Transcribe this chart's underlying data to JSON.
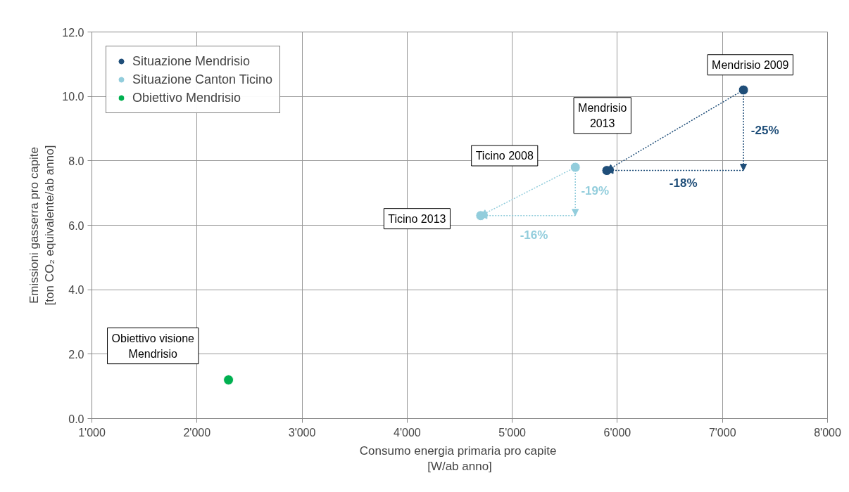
{
  "chart_data": {
    "type": "scatter",
    "xlabel": "Consumo  energia primaria pro capite\n[W/ab anno]",
    "ylabel": "Emissioni gasserra pro capite\n[ton CO₂ equivalente/ab anno]",
    "series": [
      {
        "name": "Situazione Mendrisio",
        "color": "#1f4e79",
        "x": [
          7200,
          5900
        ],
        "values": [
          10.2,
          7.7
        ]
      },
      {
        "name": "Situazione Canton Ticino",
        "color": "#92cddc",
        "x": [
          5600,
          4700
        ],
        "values": [
          7.8,
          6.3
        ]
      },
      {
        "name": "Obiettivo Mendrisio",
        "color": "#00b050",
        "x": [
          2300
        ],
        "values": [
          1.2
        ]
      }
    ],
    "xlim": [
      1000,
      8000
    ],
    "xticks": [
      {
        "value": 1000,
        "label": "1'000"
      },
      {
        "value": 2000,
        "label": "2'000"
      },
      {
        "value": 3000,
        "label": "3'000"
      },
      {
        "value": 4000,
        "label": "4'000"
      },
      {
        "value": 5000,
        "label": "5'000"
      },
      {
        "value": 6000,
        "label": "6'000"
      },
      {
        "value": 7000,
        "label": "7'000"
      },
      {
        "value": 8000,
        "label": "8'000"
      }
    ],
    "ylim": [
      0,
      12
    ],
    "yticks": [
      {
        "value": 0,
        "label": "0.0"
      },
      {
        "value": 2,
        "label": "2.0"
      },
      {
        "value": 4,
        "label": "4.0"
      },
      {
        "value": 6,
        "label": "6.0"
      },
      {
        "value": 8,
        "label": "8.0"
      },
      {
        "value": 10,
        "label": "10.0"
      },
      {
        "value": 12,
        "label": "12.0"
      }
    ],
    "grid": true,
    "legend": "top left",
    "marker": "circle",
    "annotations": [
      "Mendrisio 2009",
      "Mendrisio\n2013",
      "Ticino 2008",
      "Ticino 2013",
      "Obiettivo visione\nMendrisio",
      "-25%",
      "-18%",
      "-19%",
      "-16%"
    ]
  }
}
